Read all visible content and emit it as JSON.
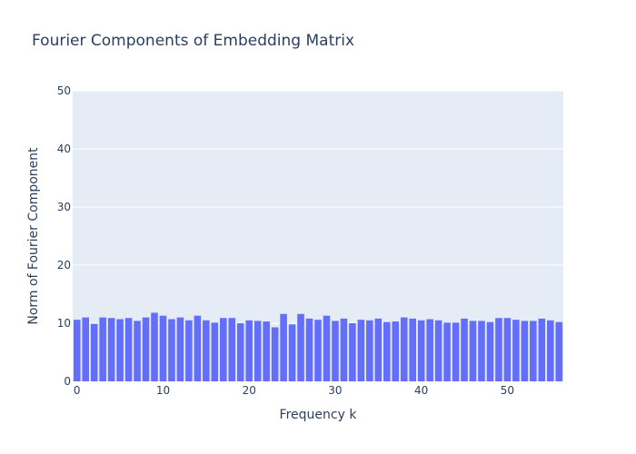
{
  "chart_data": {
    "type": "bar",
    "title": "Fourier Components of Embedding Matrix",
    "xlabel": "Frequency k",
    "ylabel": "Norm of Fourier Component",
    "xlim": [
      -0.5,
      56.5
    ],
    "ylim": [
      0,
      50
    ],
    "x_ticks": [
      0,
      10,
      20,
      30,
      40,
      50
    ],
    "y_ticks": [
      0,
      10,
      20,
      30,
      40,
      50
    ],
    "grid": true,
    "bar_color": "#636efa",
    "plot_bg_color": "#e5ecf6",
    "x": [
      0,
      1,
      2,
      3,
      4,
      5,
      6,
      7,
      8,
      9,
      10,
      11,
      12,
      13,
      14,
      15,
      16,
      17,
      18,
      19,
      20,
      21,
      22,
      23,
      24,
      25,
      26,
      27,
      28,
      29,
      30,
      31,
      32,
      33,
      34,
      35,
      36,
      37,
      38,
      39,
      40,
      41,
      42,
      43,
      44,
      45,
      46,
      47,
      48,
      49,
      50,
      51,
      52,
      53,
      54,
      55,
      56
    ],
    "values": [
      10.6,
      11.0,
      9.9,
      11.0,
      10.9,
      10.7,
      10.9,
      10.4,
      11.0,
      11.8,
      11.3,
      10.7,
      11.0,
      10.5,
      11.3,
      10.5,
      10.1,
      10.9,
      10.9,
      10.0,
      10.5,
      10.4,
      10.3,
      9.3,
      11.6,
      9.8,
      11.6,
      10.8,
      10.6,
      11.3,
      10.4,
      10.8,
      10.0,
      10.6,
      10.5,
      10.8,
      10.2,
      10.3,
      11.0,
      10.8,
      10.5,
      10.7,
      10.5,
      10.1,
      10.1,
      10.8,
      10.4,
      10.4,
      10.2,
      10.9,
      10.9,
      10.6,
      10.4,
      10.4,
      10.8,
      10.5,
      10.2
    ]
  }
}
